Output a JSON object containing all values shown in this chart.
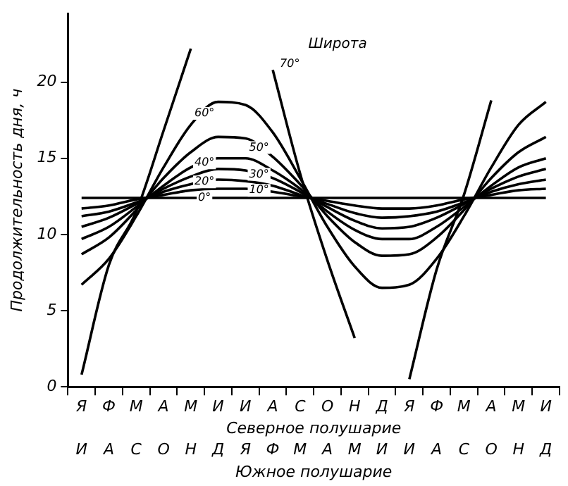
{
  "chart_data": {
    "type": "line",
    "ylabel": "Продолжительность дня, ч",
    "xlabel": "Северное полушарие",
    "categories": [
      "Я",
      "Ф",
      "М",
      "А",
      "М",
      "И",
      "И",
      "А",
      "С",
      "О",
      "Н",
      "Д",
      "Я",
      "Ф",
      "М",
      "А",
      "М",
      "И"
    ],
    "ylim": [
      0,
      24.5
    ],
    "yticks": [
      0,
      5,
      10,
      15,
      20
    ],
    "grid": false,
    "legend": false,
    "marker": "none",
    "line_style": "solid",
    "annotations": [
      "Широта",
      "И",
      "А",
      "С",
      "О",
      "Н",
      "Д",
      "Я",
      "Ф",
      "М",
      "А",
      "М",
      "И",
      "И",
      "А",
      "С",
      "О",
      "Н",
      "Д",
      "Южное полушарие"
    ],
    "series": [
      {
        "name": "70°",
        "color": "#000000",
        "values": [
          0.8,
          8.0,
          11.5,
          16.8,
          22.2,
          null,
          null,
          20.8,
          14.0,
          8.3,
          3.2,
          null,
          0.5,
          7.7,
          12.6,
          18.8,
          null,
          null
        ]
      },
      {
        "name": "60°",
        "color": "#000000",
        "values": [
          6.7,
          8.4,
          11.2,
          14.4,
          17.2,
          18.7,
          18.5,
          16.7,
          13.7,
          10.5,
          7.9,
          6.5,
          6.7,
          8.4,
          11.2,
          14.4,
          17.2,
          18.7
        ]
      },
      {
        "name": "50°",
        "color": "#000000",
        "values": [
          8.7,
          9.8,
          11.6,
          13.7,
          15.4,
          16.4,
          16.3,
          15.1,
          13.3,
          11.2,
          9.5,
          8.6,
          8.7,
          9.8,
          11.6,
          13.7,
          15.4,
          16.4
        ]
      },
      {
        "name": "40°",
        "color": "#000000",
        "values": [
          9.7,
          10.5,
          11.8,
          13.2,
          14.4,
          15.0,
          15.0,
          14.2,
          13.0,
          11.5,
          10.3,
          9.7,
          9.7,
          10.5,
          11.8,
          13.2,
          14.4,
          15.0
        ]
      },
      {
        "name": "30°",
        "color": "#000000",
        "values": [
          10.5,
          11.1,
          12.0,
          13.0,
          13.8,
          14.3,
          14.2,
          13.7,
          12.8,
          11.8,
          10.9,
          10.4,
          10.5,
          11.1,
          12.0,
          13.0,
          13.8,
          14.3
        ]
      },
      {
        "name": "20°",
        "color": "#000000",
        "values": [
          11.2,
          11.5,
          12.1,
          12.8,
          13.3,
          13.6,
          13.5,
          13.2,
          12.6,
          12.0,
          11.4,
          11.1,
          11.2,
          11.5,
          12.1,
          12.8,
          13.3,
          13.6
        ]
      },
      {
        "name": "10°",
        "color": "#000000",
        "values": [
          11.7,
          11.9,
          12.3,
          12.6,
          12.9,
          13.0,
          13.0,
          12.8,
          12.5,
          12.2,
          11.9,
          11.7,
          11.7,
          11.9,
          12.3,
          12.6,
          12.9,
          13.0
        ]
      },
      {
        "name": "0°",
        "color": "#000000",
        "values": [
          12.4,
          12.4,
          12.4,
          12.4,
          12.4,
          12.4,
          12.4,
          12.4,
          12.4,
          12.4,
          12.4,
          12.4,
          12.4,
          12.4,
          12.4,
          12.4,
          12.4,
          12.4
        ]
      }
    ]
  }
}
